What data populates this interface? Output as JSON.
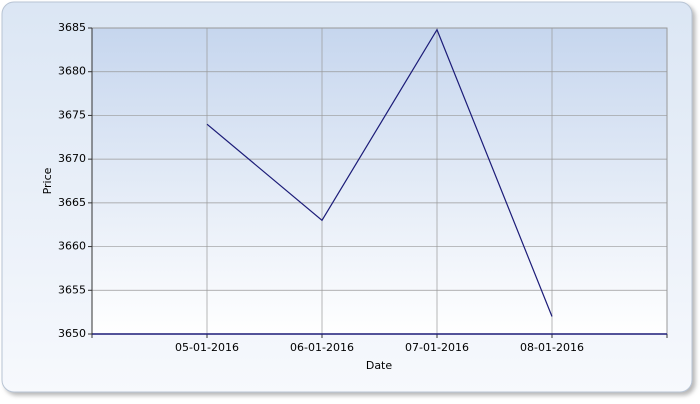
{
  "chart_data": {
    "type": "line",
    "x_label": "Date",
    "y_label": "Price",
    "categories": [
      "05-01-2016",
      "06-01-2016",
      "07-01-2016",
      "08-01-2016"
    ],
    "series": [
      {
        "name": "Price",
        "color": "#1c1c78",
        "values": [
          3674,
          3663,
          3684.8,
          3652
        ]
      }
    ],
    "ylim": [
      3650,
      3685
    ],
    "yticks": [
      3650,
      3655,
      3660,
      3665,
      3670,
      3675,
      3680,
      3685
    ],
    "grid": true
  }
}
